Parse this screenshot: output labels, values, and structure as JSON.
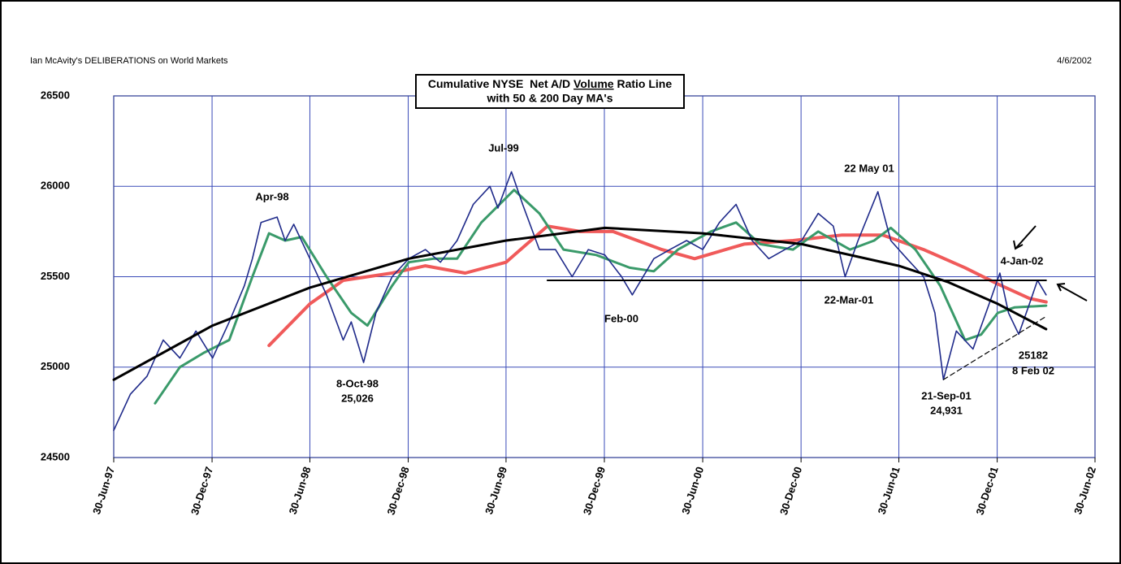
{
  "header": {
    "left": "Ian McAvity's DELIBERATIONS on World Markets",
    "right": "4/6/2002"
  },
  "chart_data": {
    "type": "line",
    "title": [
      "Cumulative NYSE  Net A/D ",
      "Volume",
      " Ratio Line"
    ],
    "subtitle": "with 50 & 200 Day MA's",
    "ylim": [
      24500,
      26500
    ],
    "yticks": [
      24500,
      25000,
      25500,
      26000,
      26500
    ],
    "xlim": [
      "1997-06-30",
      "2002-06-30"
    ],
    "xticks": [
      {
        "value": "1997-06-30",
        "label": "30-Jun-97"
      },
      {
        "value": "1997-12-30",
        "label": "30-Dec-97"
      },
      {
        "value": "1998-06-30",
        "label": "30-Jun-98"
      },
      {
        "value": "1998-12-30",
        "label": "30-Dec-98"
      },
      {
        "value": "1999-06-30",
        "label": "30-Jun-99"
      },
      {
        "value": "1999-12-30",
        "label": "30-Dec-99"
      },
      {
        "value": "2000-06-30",
        "label": "30-Jun-00"
      },
      {
        "value": "2000-12-30",
        "label": "30-Dec-00"
      },
      {
        "value": "2001-06-30",
        "label": "30-Jun-01"
      },
      {
        "value": "2001-12-30",
        "label": "30-Dec-01"
      },
      {
        "value": "2002-06-30",
        "label": "30-Jun-02"
      }
    ],
    "grid": true,
    "grid_color": "#3a4bb8",
    "series": [
      {
        "color": "#1f2a8a",
        "width": 1.6,
        "x": [
          "1997-06-30",
          "1997-07-31",
          "1997-08-31",
          "1997-09-30",
          "1997-10-31",
          "1997-11-30",
          "1997-12-31",
          "1998-01-31",
          "1998-02-28",
          "1998-03-15",
          "1998-03-31",
          "1998-04-30",
          "1998-05-15",
          "1998-05-31",
          "1998-06-30",
          "1998-07-31",
          "1998-08-31",
          "1998-09-15",
          "1998-10-08",
          "1998-10-31",
          "1998-11-30",
          "1998-12-31",
          "1999-01-31",
          "1999-02-28",
          "1999-03-31",
          "1999-04-30",
          "1999-05-31",
          "1999-06-15",
          "1999-07-10",
          "1999-07-31",
          "1999-08-31",
          "1999-09-30",
          "1999-10-31",
          "1999-11-30",
          "1999-12-31",
          "2000-01-31",
          "2000-02-20",
          "2000-03-31",
          "2000-04-30",
          "2000-05-31",
          "2000-06-30",
          "2000-07-31",
          "2000-08-31",
          "2000-09-30",
          "2000-10-31",
          "2000-11-30",
          "2000-12-31",
          "2001-01-31",
          "2001-02-28",
          "2001-03-22",
          "2001-04-15",
          "2001-05-22",
          "2001-06-15",
          "2001-07-15",
          "2001-08-15",
          "2001-09-05",
          "2001-09-21",
          "2001-10-15",
          "2001-11-15",
          "2001-12-15",
          "2002-01-04",
          "2002-01-20",
          "2002-02-08",
          "2002-02-28",
          "2002-03-15",
          "2002-03-31"
        ],
        "values": [
          24650,
          24850,
          24950,
          25150,
          25050,
          25200,
          25050,
          25250,
          25450,
          25600,
          25800,
          25830,
          25700,
          25790,
          25600,
          25400,
          25150,
          25250,
          25026,
          25300,
          25500,
          25600,
          25650,
          25580,
          25700,
          25900,
          26000,
          25880,
          26080,
          25900,
          25650,
          25650,
          25500,
          25650,
          25620,
          25500,
          25400,
          25600,
          25650,
          25700,
          25650,
          25800,
          25900,
          25700,
          25600,
          25650,
          25700,
          25850,
          25780,
          25500,
          25700,
          25970,
          25700,
          25600,
          25500,
          25300,
          24931,
          25200,
          25100,
          25350,
          25520,
          25300,
          25182,
          25350,
          25480,
          25400
        ]
      },
      {
        "color": "#3a9a6a",
        "width": 3,
        "x": [
          "1997-09-15",
          "1997-10-31",
          "1997-12-15",
          "1998-01-31",
          "1998-03-15",
          "1998-04-15",
          "1998-05-15",
          "1998-06-15",
          "1998-07-31",
          "1998-09-15",
          "1998-10-15",
          "1998-11-30",
          "1998-12-31",
          "1999-02-15",
          "1999-03-31",
          "1999-05-15",
          "1999-07-15",
          "1999-08-31",
          "1999-10-15",
          "1999-12-15",
          "2000-02-15",
          "2000-03-31",
          "2000-05-15",
          "2000-07-15",
          "2000-08-31",
          "2000-10-15",
          "2000-12-15",
          "2001-01-31",
          "2001-03-31",
          "2001-05-15",
          "2001-06-15",
          "2001-07-31",
          "2001-09-15",
          "2001-10-31",
          "2001-11-30",
          "2001-12-31",
          "2002-01-31",
          "2002-03-31"
        ],
        "values": [
          24800,
          25000,
          25080,
          25150,
          25500,
          25740,
          25700,
          25720,
          25500,
          25300,
          25230,
          25450,
          25580,
          25600,
          25600,
          25800,
          25980,
          25850,
          25650,
          25620,
          25550,
          25530,
          25650,
          25750,
          25800,
          25680,
          25650,
          25750,
          25650,
          25700,
          25770,
          25650,
          25450,
          25150,
          25180,
          25300,
          25330,
          25340
        ]
      },
      {
        "color": "#f05a5a",
        "width": 4,
        "x": [
          "1998-04-15",
          "1998-06-30",
          "1998-08-31",
          "1998-11-30",
          "1999-01-31",
          "1999-04-15",
          "1999-06-30",
          "1999-09-15",
          "1999-11-15",
          "2000-01-15",
          "2000-04-15",
          "2000-06-15",
          "2000-09-15",
          "2000-12-15",
          "2001-03-15",
          "2001-05-31",
          "2001-08-15",
          "2001-10-31",
          "2001-12-31",
          "2002-02-28",
          "2002-03-31"
        ],
        "values": [
          25120,
          25350,
          25480,
          25520,
          25560,
          25520,
          25580,
          25780,
          25750,
          25750,
          25650,
          25600,
          25680,
          25700,
          25730,
          25730,
          25650,
          25550,
          25460,
          25380,
          25360
        ]
      },
      {
        "color": "#000000",
        "width": 3,
        "x": [
          "1997-06-30",
          "1997-12-31",
          "1998-06-30",
          "1998-12-31",
          "1999-06-30",
          "1999-12-31",
          "2000-06-30",
          "2000-12-31",
          "2001-06-30",
          "2001-09-30",
          "2001-12-31",
          "2002-03-31"
        ],
        "values": [
          24930,
          25230,
          25440,
          25600,
          25700,
          25770,
          25740,
          25680,
          25560,
          25470,
          25350,
          25210
        ]
      }
    ],
    "reference_lines": [
      {
        "color": "#000000",
        "dashed": false,
        "x": [
          "1999-09-15",
          "2002-03-31"
        ],
        "values": [
          25480,
          25480
        ]
      },
      {
        "color": "#000000",
        "dashed": true,
        "x": [
          "2001-09-21",
          "2002-03-31"
        ],
        "values": [
          24931,
          25280
        ]
      }
    ],
    "annotations": [
      "Apr-98",
      "Jul-99",
      "22 May 01",
      "4-Jan-02",
      "Feb-00",
      "22-Mar-01",
      "8-Oct-98",
      "25,026",
      "25182",
      "8 Feb 02",
      "21-Sep-01",
      "24,931"
    ]
  }
}
